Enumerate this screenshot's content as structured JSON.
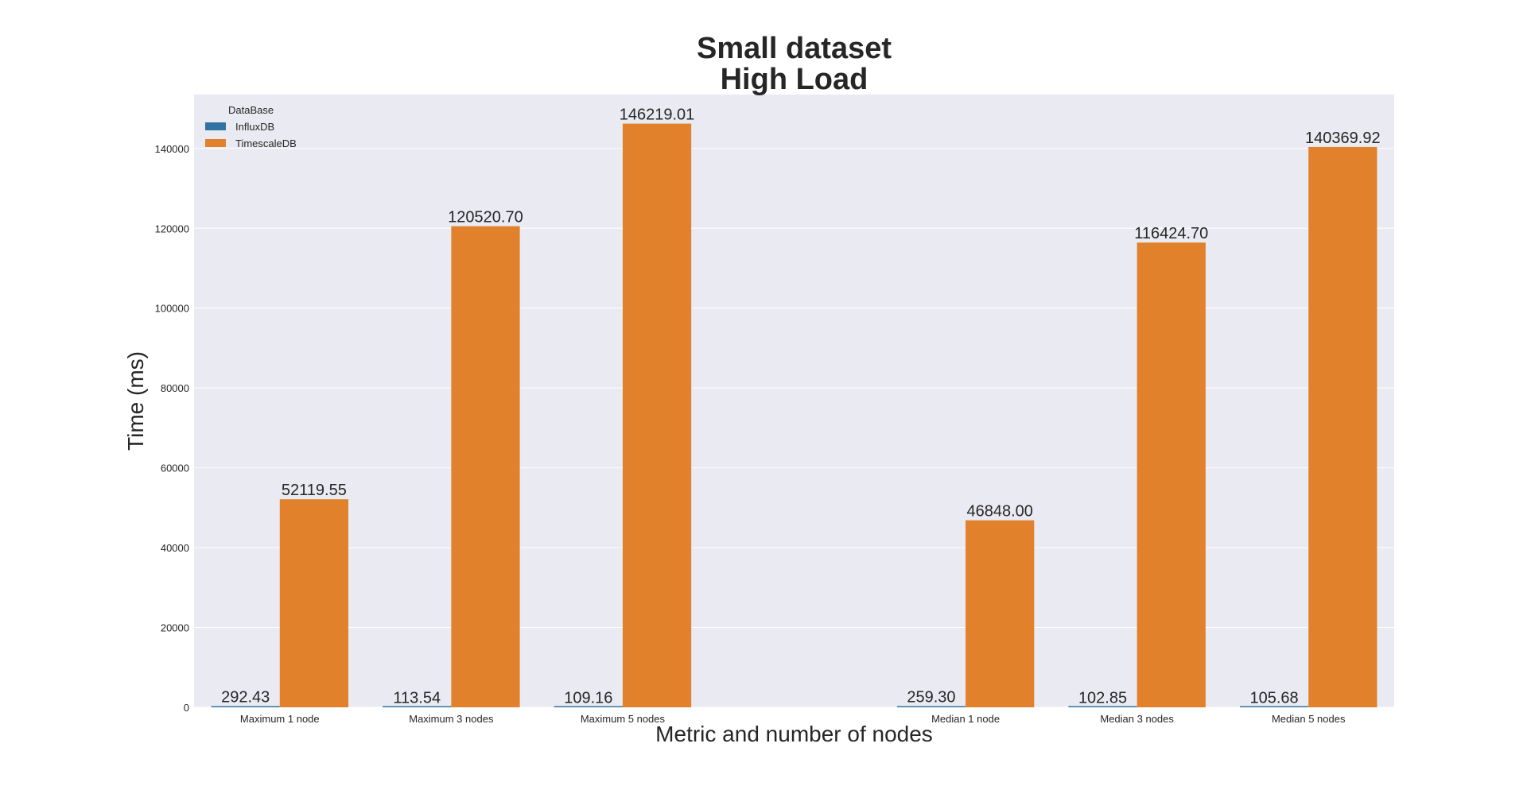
{
  "chart_data": {
    "type": "bar",
    "title": [
      "Small dataset",
      "High Load"
    ],
    "xlabel": "Metric and number of nodes",
    "ylabel": "Time (ms)",
    "categories": [
      "Maximum 1 node",
      "Maximum 3 nodes",
      "Maximum 5 nodes",
      "",
      "Median 1 node",
      "Median 3 nodes",
      "Median 5 nodes"
    ],
    "series": [
      {
        "name": "InfluxDB",
        "color": "#3274a1",
        "values": [
          292.43,
          113.54,
          109.16,
          null,
          259.3,
          102.85,
          105.68
        ],
        "labels": [
          "292.43",
          "113.54",
          "109.16",
          "",
          "259.30",
          "102.85",
          "105.68"
        ]
      },
      {
        "name": "TimescaleDB",
        "color": "#e1812c",
        "values": [
          52119.55,
          120520.7,
          146219.01,
          null,
          46848.0,
          116424.7,
          140369.92
        ],
        "labels": [
          "52119.55",
          "120520.70",
          "146219.01",
          "",
          "46848.00",
          "116424.70",
          "140369.92"
        ]
      }
    ],
    "ylim": [
      0,
      153500
    ],
    "yticks": [
      0,
      20000,
      40000,
      60000,
      80000,
      100000,
      120000,
      140000
    ],
    "ytick_labels": [
      "0",
      "20000",
      "40000",
      "60000",
      "80000",
      "100000",
      "120000",
      "140000"
    ],
    "legend": {
      "title": "DataBase",
      "placement": "top-left"
    },
    "grid": true,
    "plot_bg": "#eaeaf2",
    "grid_color": "#ffffff"
  }
}
